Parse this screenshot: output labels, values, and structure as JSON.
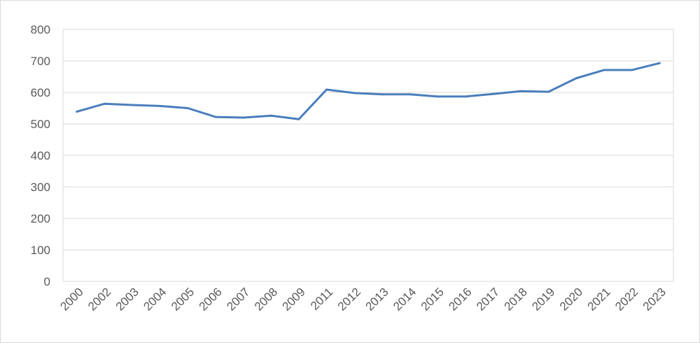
{
  "chart_data": {
    "type": "line",
    "title": "",
    "xlabel": "",
    "ylabel": "",
    "ylim": [
      0,
      800
    ],
    "yticks": [
      "0",
      "100",
      "200",
      "300",
      "400",
      "500",
      "600",
      "700",
      "800"
    ],
    "grid": true,
    "legend": "none",
    "categories": [
      "2000",
      "2002",
      "2003",
      "2004",
      "2005",
      "2006",
      "2007",
      "2008",
      "2009",
      "2011",
      "2012",
      "2013",
      "2014",
      "2015",
      "2016",
      "2017",
      "2018",
      "2019",
      "2020",
      "2021",
      "2022",
      "2023"
    ],
    "series": [
      {
        "color": "#4a7ebb",
        "values": [
          539,
          564,
          560,
          557,
          550,
          522,
          520,
          526,
          515,
          609,
          598,
          594,
          594,
          587,
          587,
          595,
          604,
          602,
          645,
          671,
          671,
          693
        ]
      }
    ]
  }
}
